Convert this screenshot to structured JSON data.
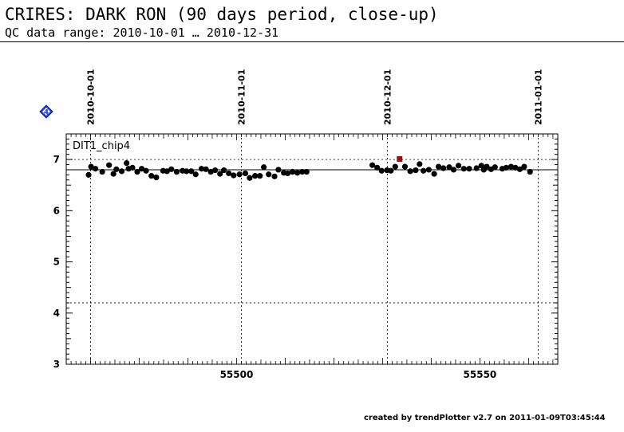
{
  "header": {
    "title": "CRIRES: DARK RON (90 days period, close-up)",
    "subtitle": "QC data range: 2010-10-01 … 2010-12-31"
  },
  "marker": {
    "label": "4",
    "color": "#1f3fd8"
  },
  "footer": {
    "text": "created by trendPlotter v2.7 on 2011-01-09T03:45:44"
  },
  "chart_data": {
    "type": "scatter",
    "panel_label": "DIT1_chip4",
    "xlim": [
      55465,
      55566
    ],
    "ylim": [
      3,
      7.5
    ],
    "x_ticks": [
      55500,
      55550
    ],
    "y_ticks": [
      3,
      4,
      5,
      6,
      7
    ],
    "date_ticks": [
      {
        "label": "2010-10-01",
        "x": 55470
      },
      {
        "label": "2010-11-01",
        "x": 55501
      },
      {
        "label": "2010-12-01",
        "x": 55531
      },
      {
        "label": "2011-01-01",
        "x": 55562
      }
    ],
    "reference_lines": {
      "mean": 6.8,
      "upper": 7.0,
      "lower": 4.2
    },
    "colors": {
      "points": "#000000",
      "outlier": "#9b1010"
    },
    "series": [
      {
        "x": [
          55469.6,
          55470.1,
          55471,
          55472.4,
          55473.8,
          55474.7,
          55475.3,
          55476.4,
          55477.4,
          55477.8,
          55478.6,
          55479.6,
          55480.5,
          55481.4,
          55482.5,
          55483.5,
          55484.9,
          55485.7,
          55486.6,
          55487.7,
          55488.9,
          55489.7,
          55490.7,
          55491.6,
          55492.8,
          55493.7,
          55494.7,
          55495.6,
          55496.6,
          55497.4,
          55498.4,
          55499.4,
          55500.6,
          55501.8,
          55502.7,
          55503.8,
          55504.8,
          55505.6,
          55506.6,
          55507.8,
          55508.6,
          55509.7,
          55510.5,
          55511.5,
          55512.5,
          55513.5,
          55514.4,
          55527.9,
          55528.9,
          55529.8,
          55530.9,
          55531.7,
          55532.6,
          55534.6,
          55535.7,
          55536.8,
          55537.6,
          55538.4,
          55539.5,
          55540.6,
          55541.5,
          55542.5,
          55543.7,
          55544.6,
          55545.6,
          55546.7,
          55547.8,
          55549.3,
          55550.3,
          55550.8,
          55551.4,
          55552.3,
          55553.1,
          55554.6,
          55555.4,
          55556.4,
          55557.3,
          55558.2,
          55559.1,
          55560.3
        ],
        "y": [
          6.7,
          6.86,
          6.82,
          6.76,
          6.89,
          6.72,
          6.81,
          6.77,
          6.93,
          6.82,
          6.84,
          6.76,
          6.82,
          6.78,
          6.68,
          6.65,
          6.78,
          6.77,
          6.81,
          6.76,
          6.78,
          6.77,
          6.77,
          6.71,
          6.82,
          6.81,
          6.76,
          6.79,
          6.72,
          6.79,
          6.73,
          6.69,
          6.71,
          6.73,
          6.64,
          6.68,
          6.68,
          6.85,
          6.71,
          6.67,
          6.8,
          6.74,
          6.73,
          6.76,
          6.74,
          6.76,
          6.76,
          6.89,
          6.84,
          6.78,
          6.79,
          6.78,
          6.86,
          6.86,
          6.77,
          6.79,
          6.91,
          6.78,
          6.8,
          6.72,
          6.86,
          6.83,
          6.85,
          6.8,
          6.88,
          6.82,
          6.82,
          6.83,
          6.88,
          6.8,
          6.86,
          6.81,
          6.85,
          6.82,
          6.84,
          6.86,
          6.84,
          6.81,
          6.86,
          6.76
        ]
      },
      {
        "name": "outlier",
        "x": [
          55533.5
        ],
        "y": [
          7.01
        ]
      }
    ]
  }
}
